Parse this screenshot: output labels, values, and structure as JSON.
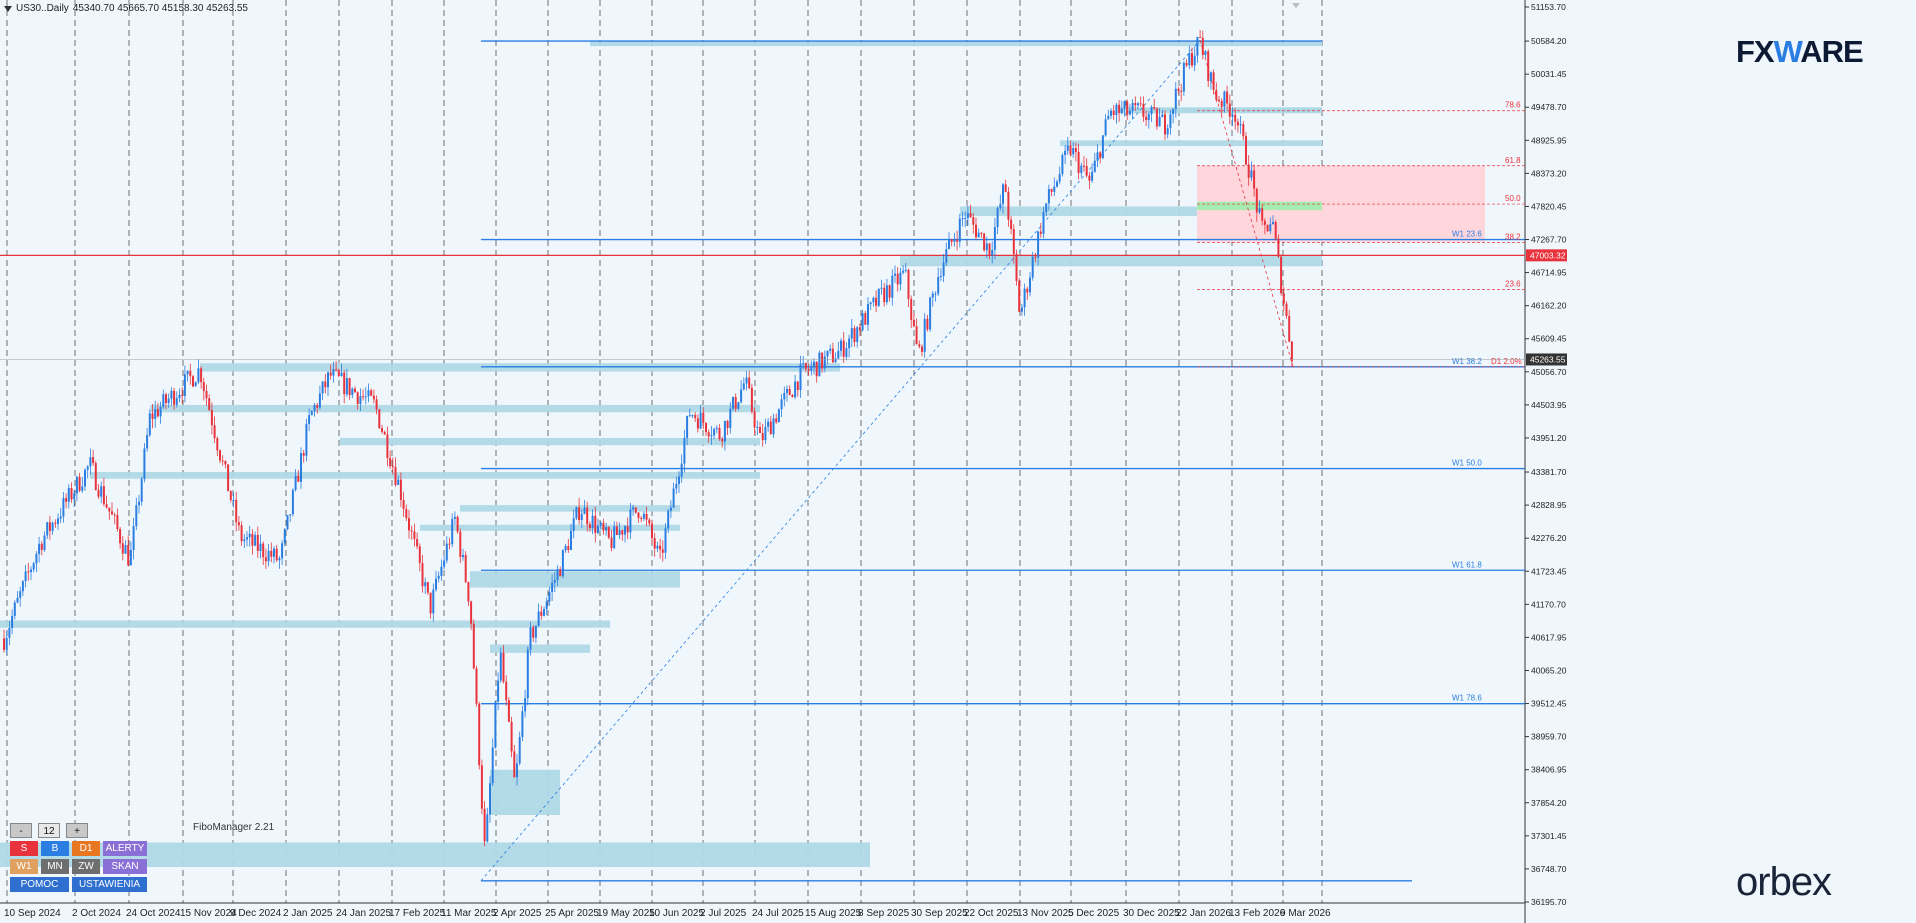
{
  "header": {
    "symbol": "US30..Daily",
    "ohlc": "45340.70 45665.70 45158.30 45263.55"
  },
  "price_axis": {
    "min": 36195.7,
    "max": 51153.7,
    "labels": [
      "51153.70",
      "50584.20",
      "50031.45",
      "49478.70",
      "48925.95",
      "48373.20",
      "47820.45",
      "47267.70",
      "46714.95",
      "46162.20",
      "45609.45",
      "45056.70",
      "44503.95",
      "43951.20",
      "43381.70",
      "42828.95",
      "42276.20",
      "41723.45",
      "41170.70",
      "40617.95",
      "40065.20",
      "39512.45",
      "38959.70",
      "38406.95",
      "37854.20",
      "37301.45",
      "36748.70",
      "36195.70"
    ],
    "current_price": "45263.55",
    "red_line_price": "47003.32"
  },
  "time_axis": {
    "labels": [
      "10 Sep 2024",
      "2 Oct 2024",
      "24 Oct 2024",
      "15 Nov 2024",
      "9 Dec 2024",
      "2 Jan 2025",
      "24 Jan 2025",
      "17 Feb 2025",
      "11 Mar 2025",
      "2 Apr 2025",
      "25 Apr 2025",
      "19 May 2025",
      "10 Jun 2025",
      "2 Jul 2025",
      "24 Jul 2025",
      "15 Aug 2025",
      "8 Sep 2025",
      "30 Sep 2025",
      "22 Oct 2025",
      "13 Nov 2025",
      "5 Dec 2025",
      "30 Dec 2025",
      "22 Jan 2026",
      "13 Feb 2026",
      "9 Mar 2026"
    ]
  },
  "fibo_weekly": [
    {
      "label": "W1 23.6",
      "price": 47267
    },
    {
      "label": "W1 38.2",
      "price": 45140
    },
    {
      "label": "W1 50.0",
      "price": 43440
    },
    {
      "label": "W1 61.8",
      "price": 41740
    },
    {
      "label": "W1 78.6",
      "price": 39510
    }
  ],
  "fibo_daily": [
    {
      "label": "78.6",
      "price": 49420
    },
    {
      "label": "61.8",
      "price": 48500
    },
    {
      "label": "50.0",
      "price": 47860
    },
    {
      "label": "38.2",
      "price": 47220
    },
    {
      "label": "23.6",
      "price": 46430
    },
    {
      "label": "D1 2.0%",
      "price": 45140
    }
  ],
  "branding": {
    "fxware": "FXWARE",
    "fxware_prefix": "FX",
    "fxware_w": "W",
    "fxware_suffix": "ARE",
    "orbex": "orbex",
    "fibomanager": "FiboManager 2.21"
  },
  "panel": {
    "minus": "-",
    "value": "12",
    "plus": "+",
    "row1": [
      "S",
      "B",
      "D1",
      "ALERTY"
    ],
    "row2": [
      "W1",
      "MN",
      "ZW",
      "SKAN"
    ],
    "row3": [
      "POMOC",
      "USTAWIENIA"
    ]
  },
  "colors": {
    "bull": "#2a7de1",
    "bear": "#e8333c",
    "zone": "#aed8e6",
    "fibo_line": "#2a7de1",
    "pink_zone": "#ffd6dc",
    "green_zone": "#a6ecb0"
  }
}
